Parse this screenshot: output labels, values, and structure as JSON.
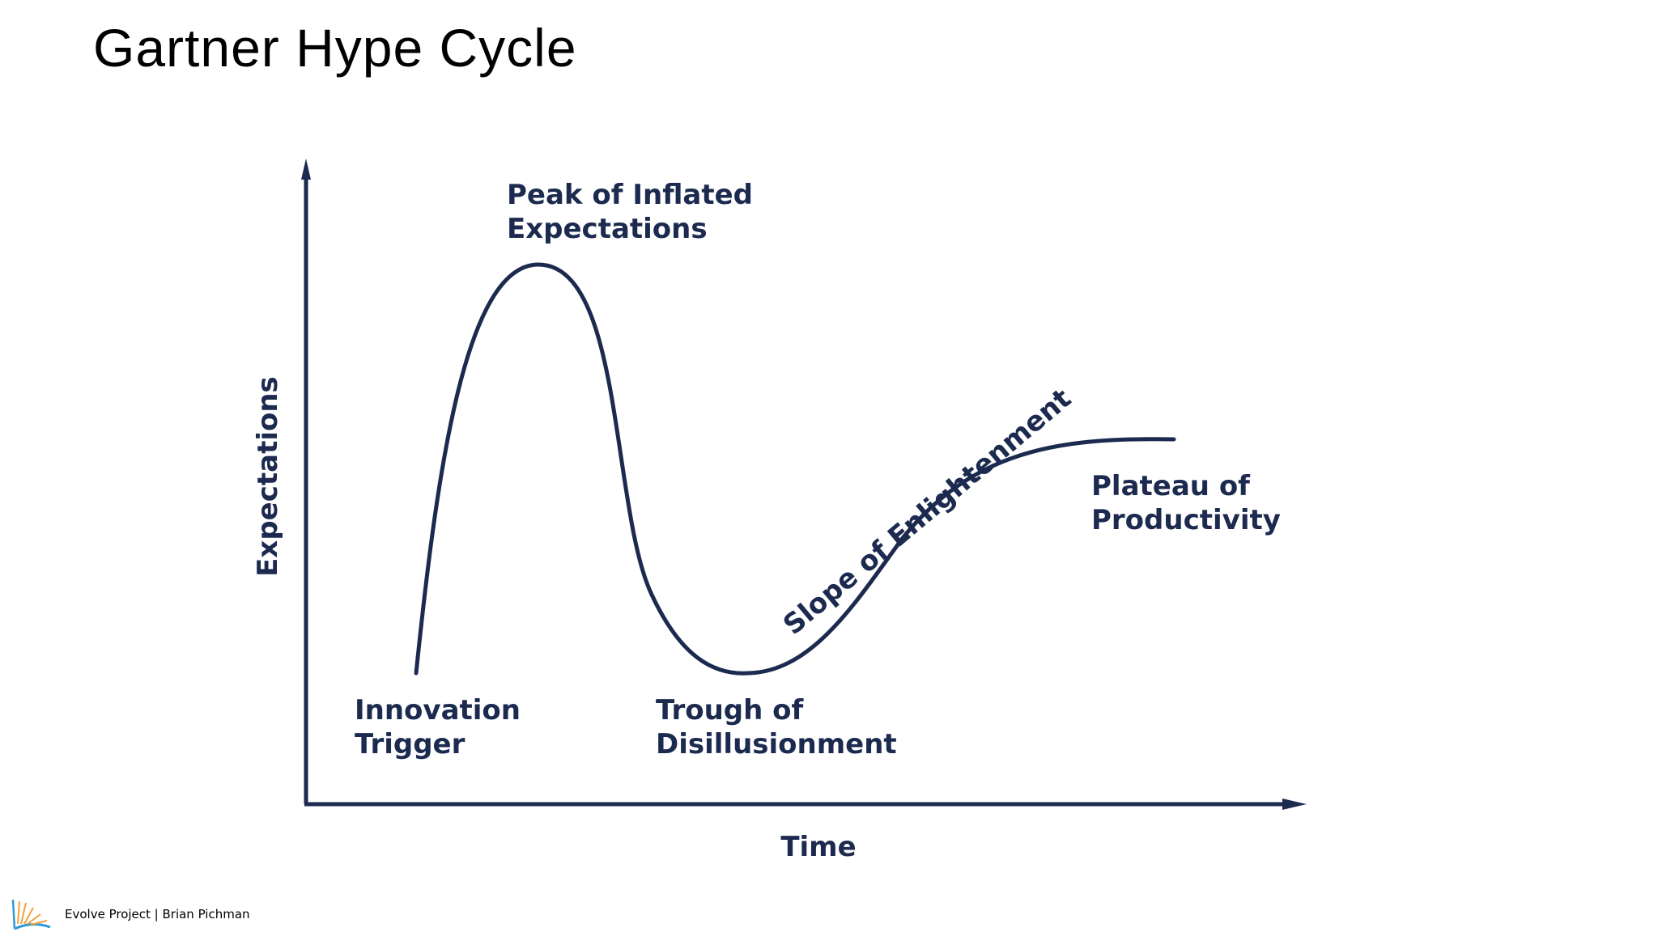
{
  "slide": {
    "title": "Gartner Hype Cycle"
  },
  "axes": {
    "y_label": "Expectations",
    "x_label": "Time"
  },
  "phases": [
    {
      "id": "innovation-trigger",
      "lines": [
        "Innovation",
        "Trigger"
      ]
    },
    {
      "id": "peak",
      "lines": [
        "Peak of Inflated",
        "Expectations"
      ]
    },
    {
      "id": "trough",
      "lines": [
        "Trough of",
        "Disillusionment"
      ]
    },
    {
      "id": "slope",
      "lines": [
        "Slope of Enlightenment"
      ]
    },
    {
      "id": "plateau",
      "lines": [
        "Plateau of",
        "Productivity"
      ]
    }
  ],
  "footer": {
    "text": "Evolve Project | Brian Pichman",
    "logo_icon": "book-logo-icon"
  },
  "colors": {
    "diagram": "#1c2a4f",
    "logo_orange": "#f2a13a",
    "logo_blue": "#2d9ad6"
  }
}
